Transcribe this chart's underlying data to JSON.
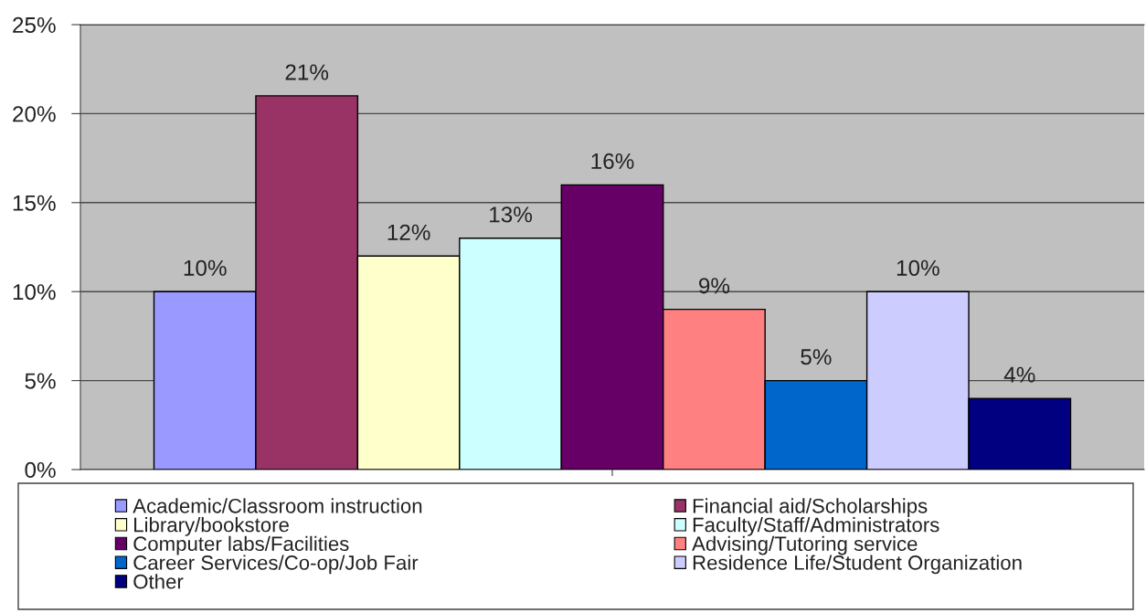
{
  "chart_data": {
    "type": "bar",
    "categories": [
      null
    ],
    "series": [
      {
        "name": "Academic/Classroom instruction",
        "color": "#9999ff",
        "values": [
          10
        ],
        "value_labels": [
          "10%"
        ]
      },
      {
        "name": "Financial aid/Scholarships",
        "color": "#993366",
        "values": [
          21
        ],
        "value_labels": [
          "21%"
        ]
      },
      {
        "name": "Library/bookstore",
        "color": "#ffffcc",
        "values": [
          12
        ],
        "value_labels": [
          "12%"
        ]
      },
      {
        "name": "Faculty/Staff/Administrators",
        "color": "#ccffff",
        "values": [
          13
        ],
        "value_labels": [
          "13%"
        ]
      },
      {
        "name": "Computer labs/Facilities",
        "color": "#660066",
        "values": [
          16
        ],
        "value_labels": [
          "16%"
        ]
      },
      {
        "name": "Advising/Tutoring service",
        "color": "#ff8080",
        "values": [
          9
        ],
        "value_labels": [
          "9%"
        ]
      },
      {
        "name": "Career Services/Co-op/Job Fair",
        "color": "#0066cc",
        "values": [
          5
        ],
        "value_labels": [
          "5%"
        ]
      },
      {
        "name": "Residence Life/Student Organization",
        "color": "#ccccff",
        "values": [
          10
        ],
        "value_labels": [
          "10%"
        ]
      },
      {
        "name": "Other",
        "color": "#000080",
        "values": [
          4
        ],
        "value_labels": [
          "4%"
        ]
      }
    ],
    "ylim": [
      0,
      25
    ],
    "yticks": [
      {
        "value": 0,
        "label": "0%"
      },
      {
        "value": 5,
        "label": "5%"
      },
      {
        "value": 10,
        "label": "10%"
      },
      {
        "value": 15,
        "label": "15%"
      },
      {
        "value": 20,
        "label": "20%"
      },
      {
        "value": 25,
        "label": "25%"
      }
    ],
    "grid": "y",
    "legend": "bottom",
    "tick_labels": "y"
  }
}
